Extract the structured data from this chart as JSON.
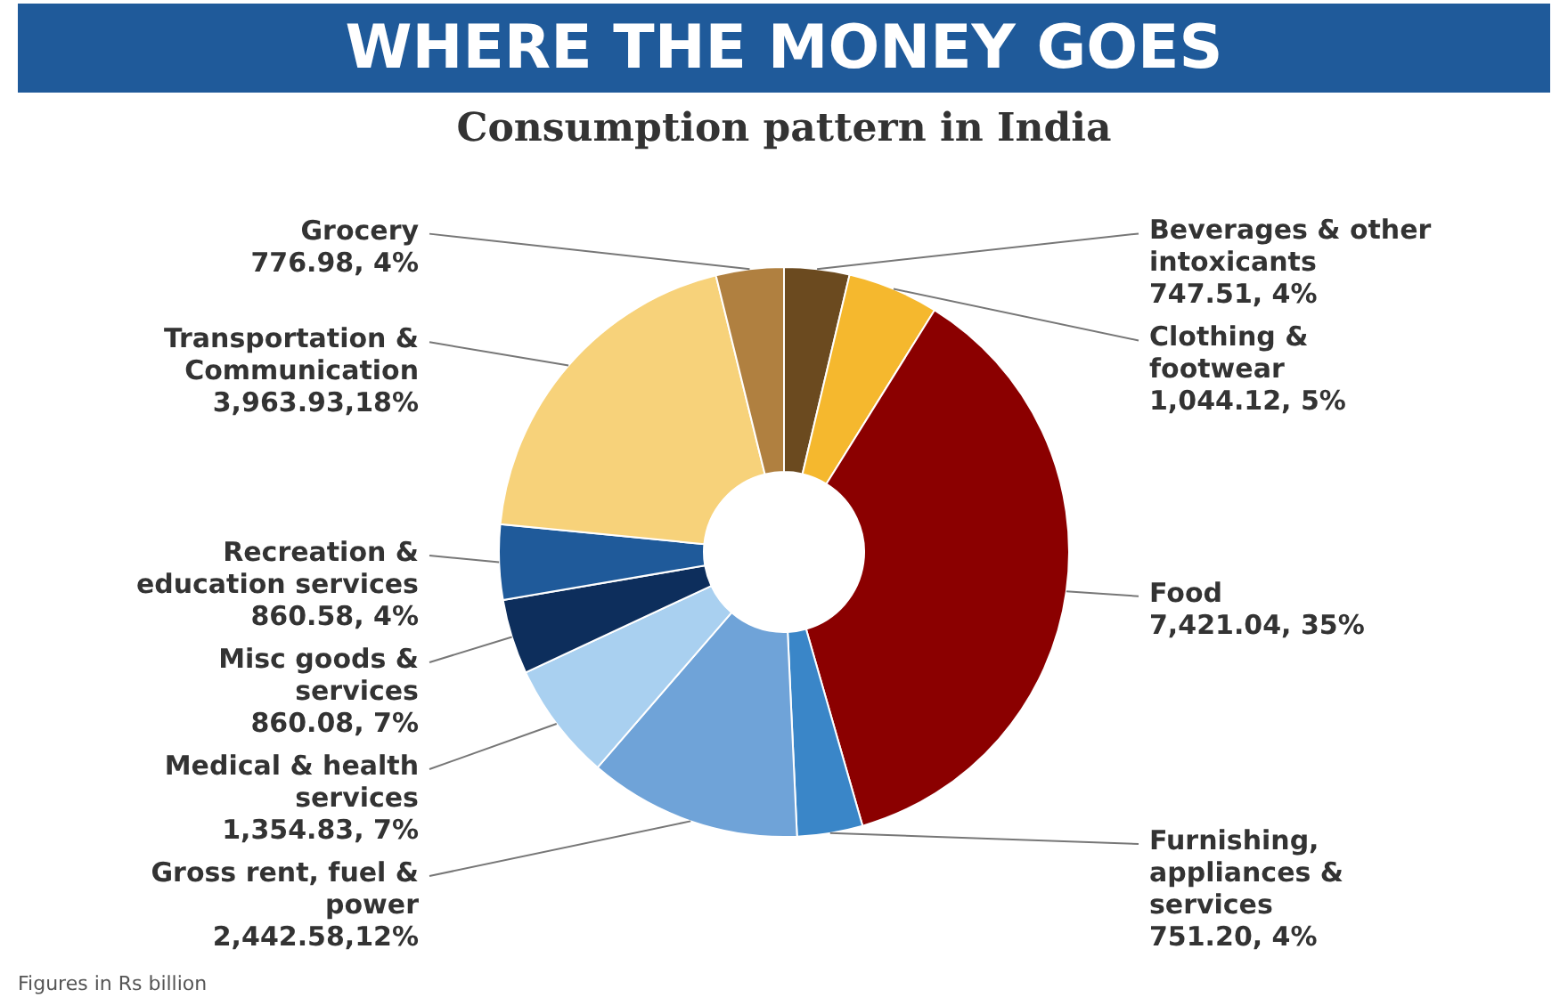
{
  "chart_data": {
    "type": "donut",
    "title": "WHERE THE MONEY GOES",
    "subtitle": "Consumption pattern in India",
    "categories": [
      "Beverages & other intoxicants",
      "Clothing & footwear",
      "Food",
      "Furnishing, appliances & services",
      "Gross rent, fuel & power",
      "Medical & health services",
      "Misc goods & services",
      "Recreation & education services",
      "Transportation & Communication",
      "Grocery"
    ],
    "values": [
      747.51,
      1044.12,
      7421.04,
      751.2,
      2442.58,
      1354.83,
      860.08,
      860.58,
      3963.93,
      776.98
    ],
    "value_labels": [
      "747.51, 4%",
      "1,044.12, 5%",
      "7,421.04, 35%",
      "751.20, 4%",
      "2,442.58,12%",
      "1,354.83, 7%",
      "860.08, 7%",
      "860.58, 4%",
      "3,963.93,18%",
      "776.98, 4%"
    ],
    "colors": [
      "#6b4a1f",
      "#f5b82e",
      "#8b0000",
      "#3a86c8",
      "#6fa3d8",
      "#a9d0f0",
      "#0d2e5c",
      "#1f5a9a",
      "#f7d27a",
      "#b08040"
    ],
    "annotations": [
      "Figures in Rs billion"
    ]
  }
}
